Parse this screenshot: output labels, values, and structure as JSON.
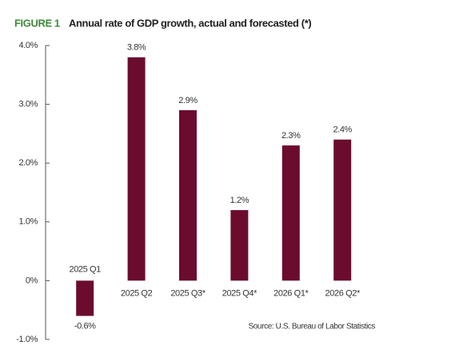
{
  "chart_data": {
    "type": "bar",
    "label": "FIGURE 1",
    "title": "Annual rate of GDP growth, actual and forecasted (*)",
    "categories": [
      "2025 Q1",
      "2025 Q2",
      "2025 Q3*",
      "2025 Q4*",
      "2026 Q1*",
      "2026 Q2*"
    ],
    "values": [
      -0.6,
      3.8,
      2.9,
      1.2,
      2.3,
      2.4
    ],
    "value_labels": [
      "-0.6%",
      "3.8%",
      "2.9%",
      "1.2%",
      "2.3%",
      "2.4%"
    ],
    "color": "#6b0c2f",
    "ylim": [
      -1,
      4
    ],
    "yticks": [
      {
        "value": 4,
        "label": "4.0%"
      },
      {
        "value": 3,
        "label": "3.0%"
      },
      {
        "value": 2,
        "label": "2.0%"
      },
      {
        "value": 1,
        "label": "1.0%"
      },
      {
        "value": 0,
        "label": "0%"
      },
      {
        "value": -1,
        "label": "-1.0%"
      }
    ],
    "source": "Source: U.S. Bureau of Labor Statistics"
  }
}
